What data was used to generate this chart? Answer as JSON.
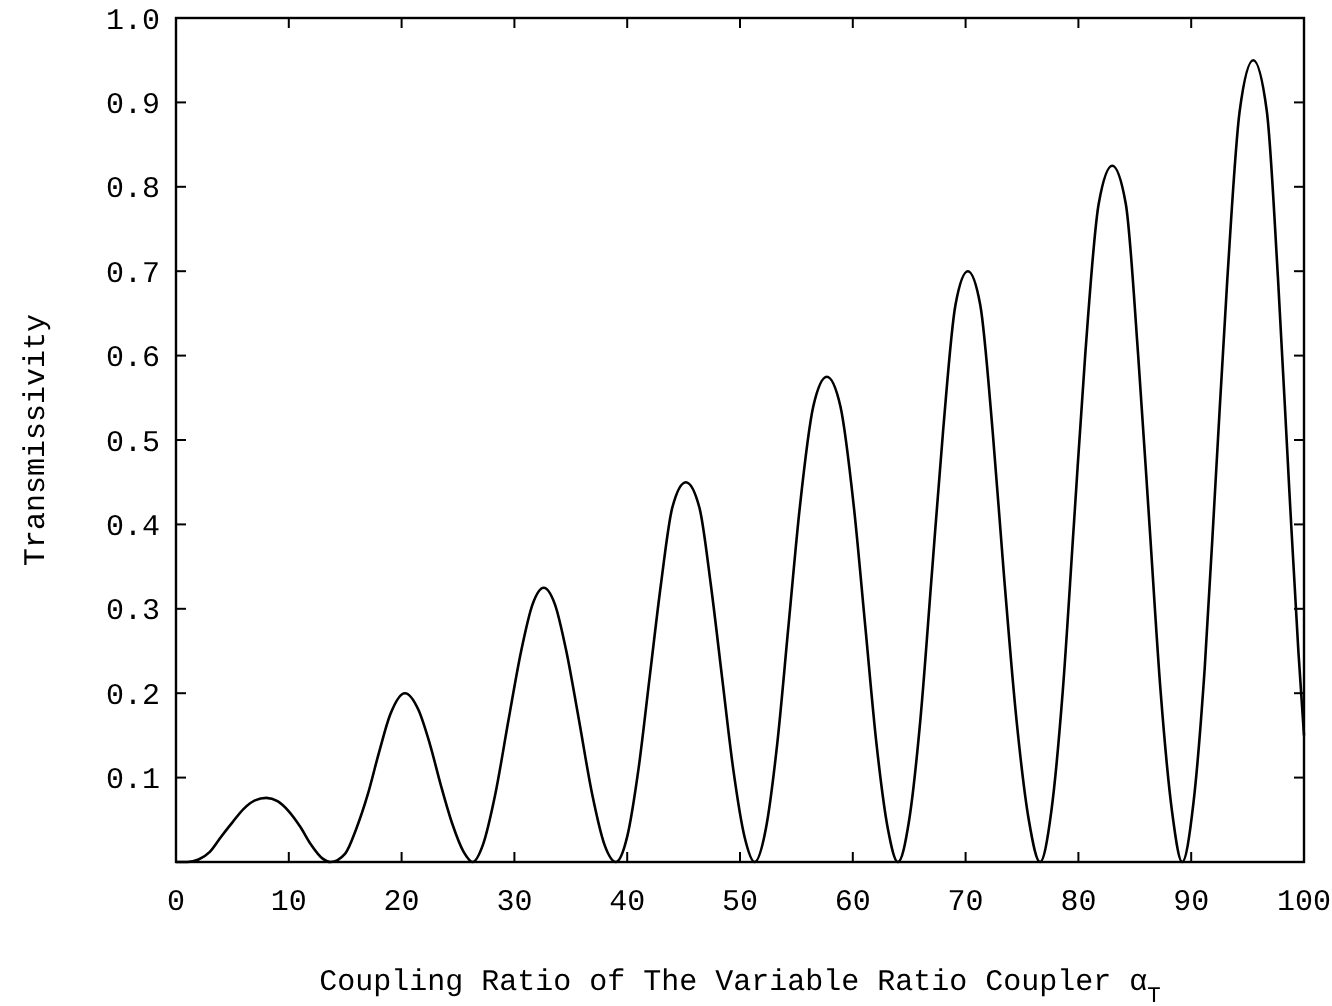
{
  "chart_data": {
    "type": "line",
    "xlabel": "Coupling Ratio of The Variable Ratio Coupler α$_{T}$",
    "ylabel": "Transmissivity",
    "xlim": [
      0,
      100
    ],
    "ylim": [
      0,
      1
    ],
    "xticks": [
      0,
      10,
      20,
      30,
      40,
      50,
      60,
      70,
      80,
      90,
      100
    ],
    "yticks": [
      0.1,
      0.2,
      0.3,
      0.4,
      0.5,
      0.6,
      0.7,
      0.8,
      0.9,
      {
        "value": 1,
        "label": "1.0"
      }
    ],
    "marker": "none",
    "line_style": "solid",
    "series": [
      {
        "color": "#000000",
        "x": [
          0,
          1,
          2,
          3,
          4,
          5,
          6,
          7,
          8,
          9,
          10,
          11,
          12,
          13,
          13.7,
          15,
          16,
          17,
          18,
          19,
          20.3,
          21.5,
          22.5,
          23.5,
          24.5,
          25.5,
          26.3,
          27.2,
          28.3,
          29.5,
          30.6,
          31.6,
          32.6,
          33.6,
          34.6,
          35.7,
          36.9,
          38,
          39,
          40,
          41,
          42,
          43,
          44,
          45.2,
          46.4,
          47.4,
          48.4,
          49.4,
          50.4,
          51.3,
          52.3,
          53.3,
          54.3,
          55.3,
          56.5,
          57.7,
          58.9,
          60.1,
          61.1,
          62.1,
          63.1,
          64,
          65,
          66,
          67,
          68,
          69.1,
          70.2,
          71.3,
          72.4,
          73.4,
          74.5,
          75.6,
          76.6,
          77.6,
          78.6,
          79.6,
          80.6,
          81.8,
          83,
          84.2,
          85.3,
          86.3,
          87.3,
          88.3,
          89.2,
          90.2,
          91.2,
          92.2,
          93.2,
          94.3,
          95.5,
          96.7,
          97.7,
          98.7,
          99.5,
          100
        ],
        "values": [
          0,
          0,
          0.003,
          0.012,
          0.03,
          0.047,
          0.063,
          0.073,
          0.076,
          0.072,
          0.06,
          0.042,
          0.02,
          0.004,
          0,
          0.01,
          0.04,
          0.08,
          0.13,
          0.175,
          0.2,
          0.18,
          0.14,
          0.09,
          0.045,
          0.012,
          0,
          0.02,
          0.08,
          0.17,
          0.25,
          0.305,
          0.325,
          0.305,
          0.25,
          0.17,
          0.08,
          0.02,
          0,
          0.03,
          0.11,
          0.22,
          0.33,
          0.42,
          0.45,
          0.42,
          0.33,
          0.22,
          0.11,
          0.03,
          0,
          0.04,
          0.14,
          0.28,
          0.42,
          0.54,
          0.575,
          0.54,
          0.42,
          0.28,
          0.14,
          0.04,
          0,
          0.05,
          0.17,
          0.34,
          0.51,
          0.66,
          0.7,
          0.66,
          0.51,
          0.34,
          0.17,
          0.05,
          0,
          0.06,
          0.2,
          0.4,
          0.6,
          0.78,
          0.825,
          0.78,
          0.6,
          0.4,
          0.2,
          0.06,
          0,
          0.07,
          0.23,
          0.46,
          0.69,
          0.89,
          0.95,
          0.89,
          0.69,
          0.44,
          0.25,
          0.15
        ]
      }
    ]
  }
}
